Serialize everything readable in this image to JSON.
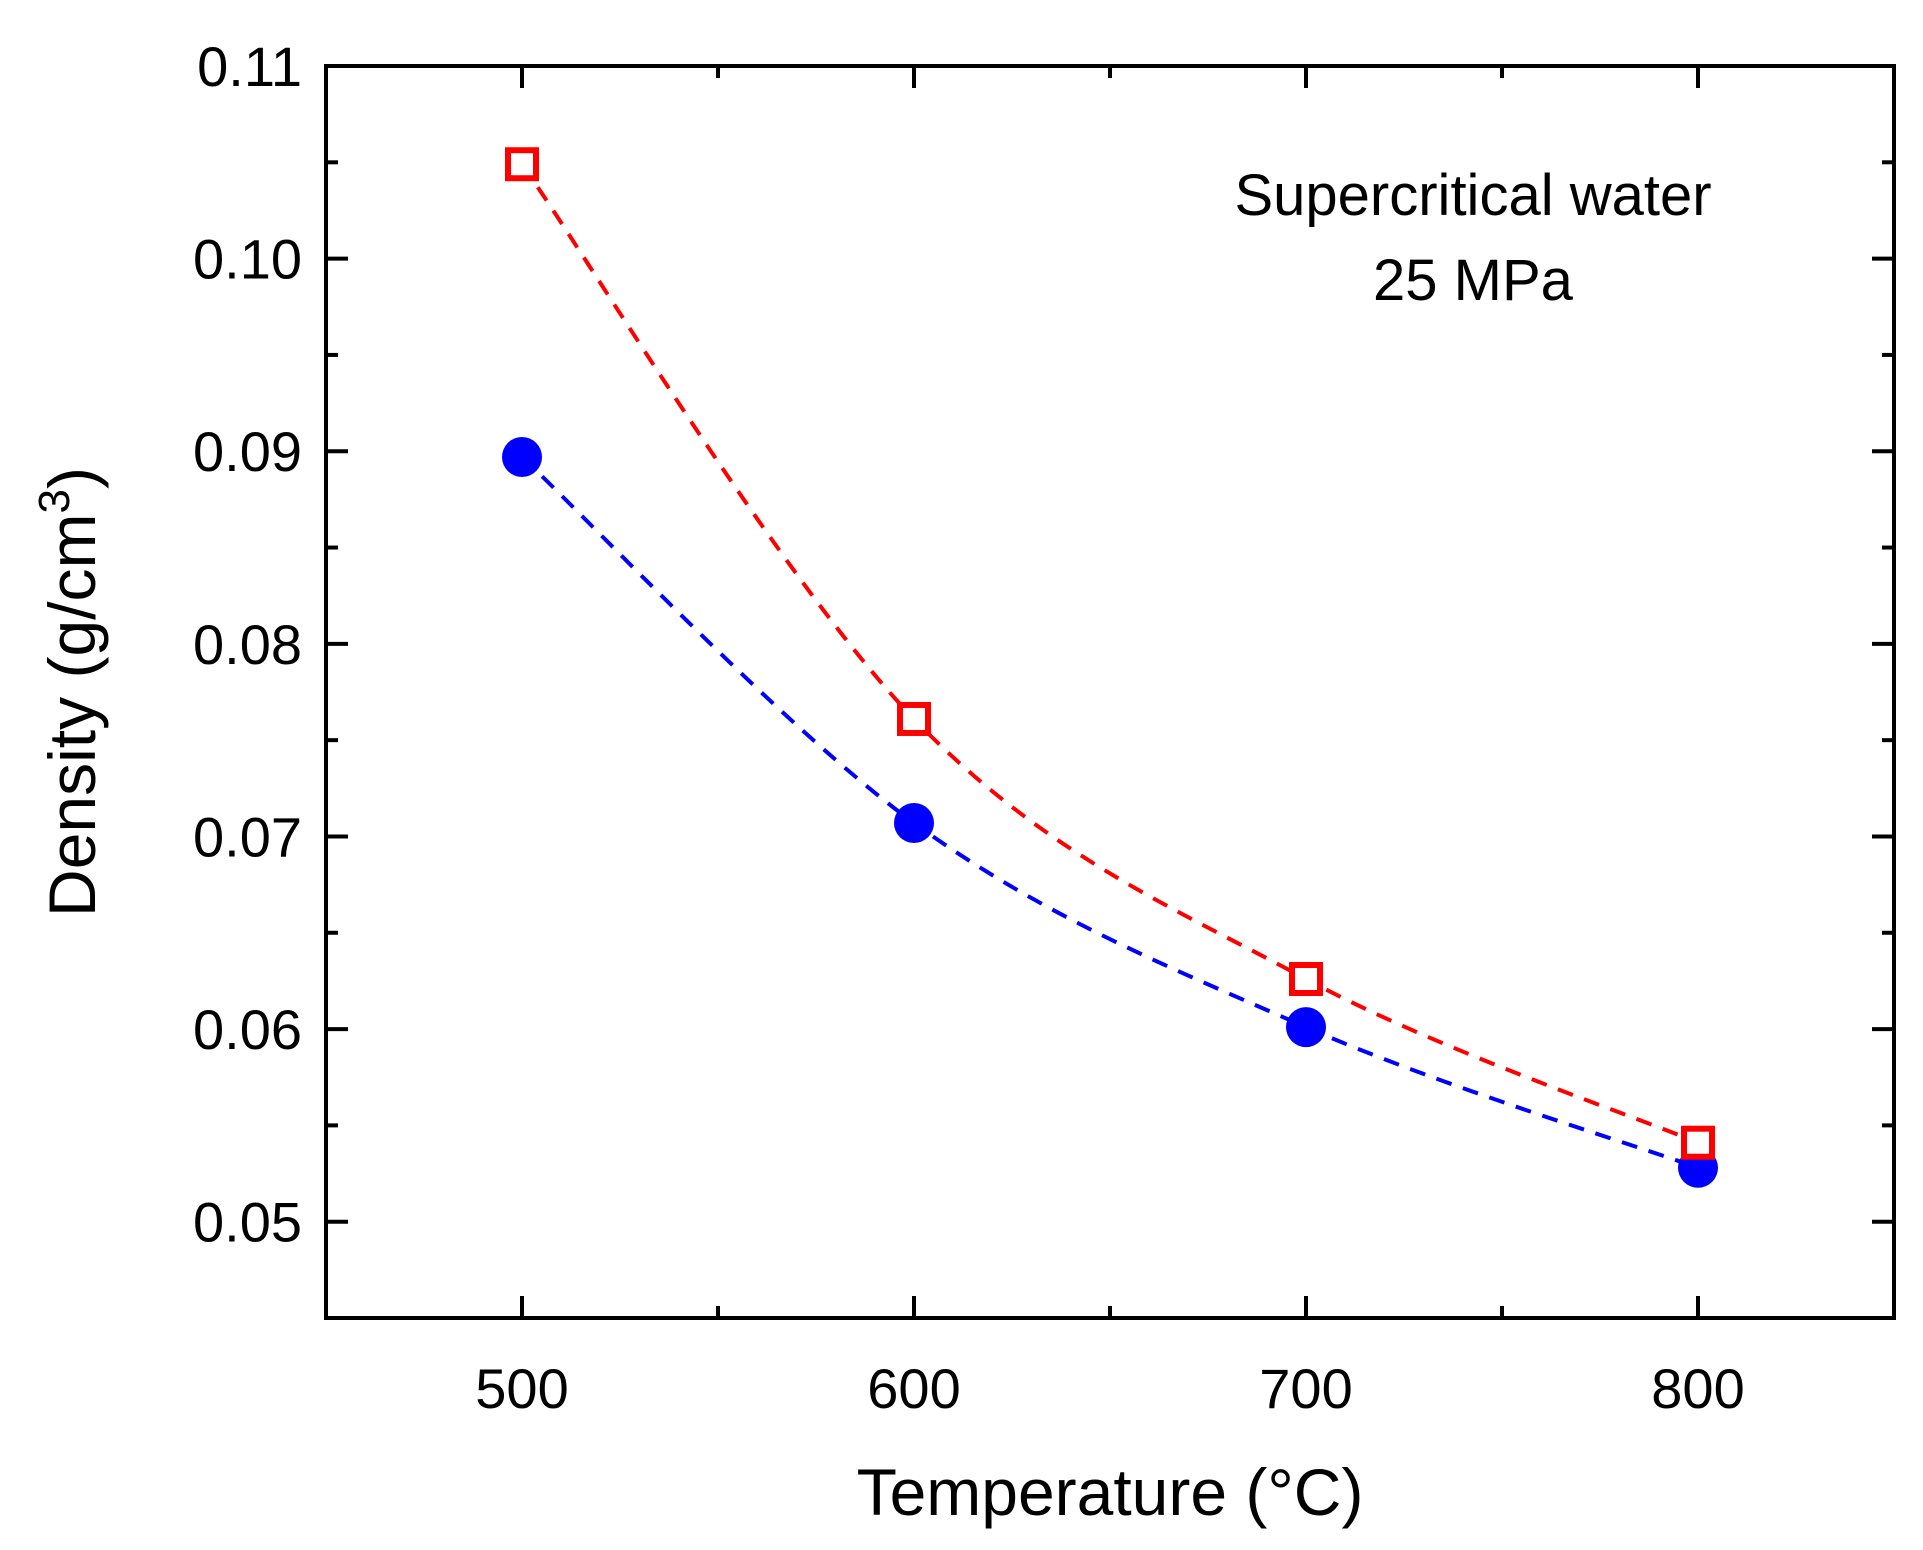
{
  "chart_data": {
    "type": "scatter",
    "title": "",
    "xlabel": "Temperature (°C)",
    "ylabel_main": "Density (g/cm",
    "ylabel_sup": "3",
    "ylabel_close": ")",
    "xlim": [
      450,
      850
    ],
    "ylim": [
      0.045,
      0.11
    ],
    "xticks": [
      500,
      600,
      700,
      800
    ],
    "xtick_labels": [
      "500",
      "600",
      "700",
      "800"
    ],
    "xminor": [
      550,
      650,
      750
    ],
    "yticks": [
      0.05,
      0.06,
      0.07,
      0.08,
      0.09,
      0.1,
      0.11
    ],
    "ytick_labels": [
      "0.05",
      "0.06",
      "0.07",
      "0.08",
      "0.09",
      "0.10",
      "0.11"
    ],
    "yminor": [
      0.055,
      0.065,
      0.075,
      0.085,
      0.095,
      0.105
    ],
    "grid": false,
    "annotation": [
      "Supercritical water",
      "25 MPa"
    ],
    "series": [
      {
        "name": "open-square",
        "marker": "square-open",
        "color": "#ff0000",
        "x": [
          500,
          600,
          700,
          800
        ],
        "values": [
          0.1049,
          0.0761,
          0.0626,
          0.0541
        ]
      },
      {
        "name": "filled-circle",
        "marker": "circle-filled",
        "color": "#0000ff",
        "x": [
          500,
          600,
          700,
          800
        ],
        "values": [
          0.0897,
          0.0707,
          0.0601,
          0.0528
        ]
      }
    ]
  }
}
